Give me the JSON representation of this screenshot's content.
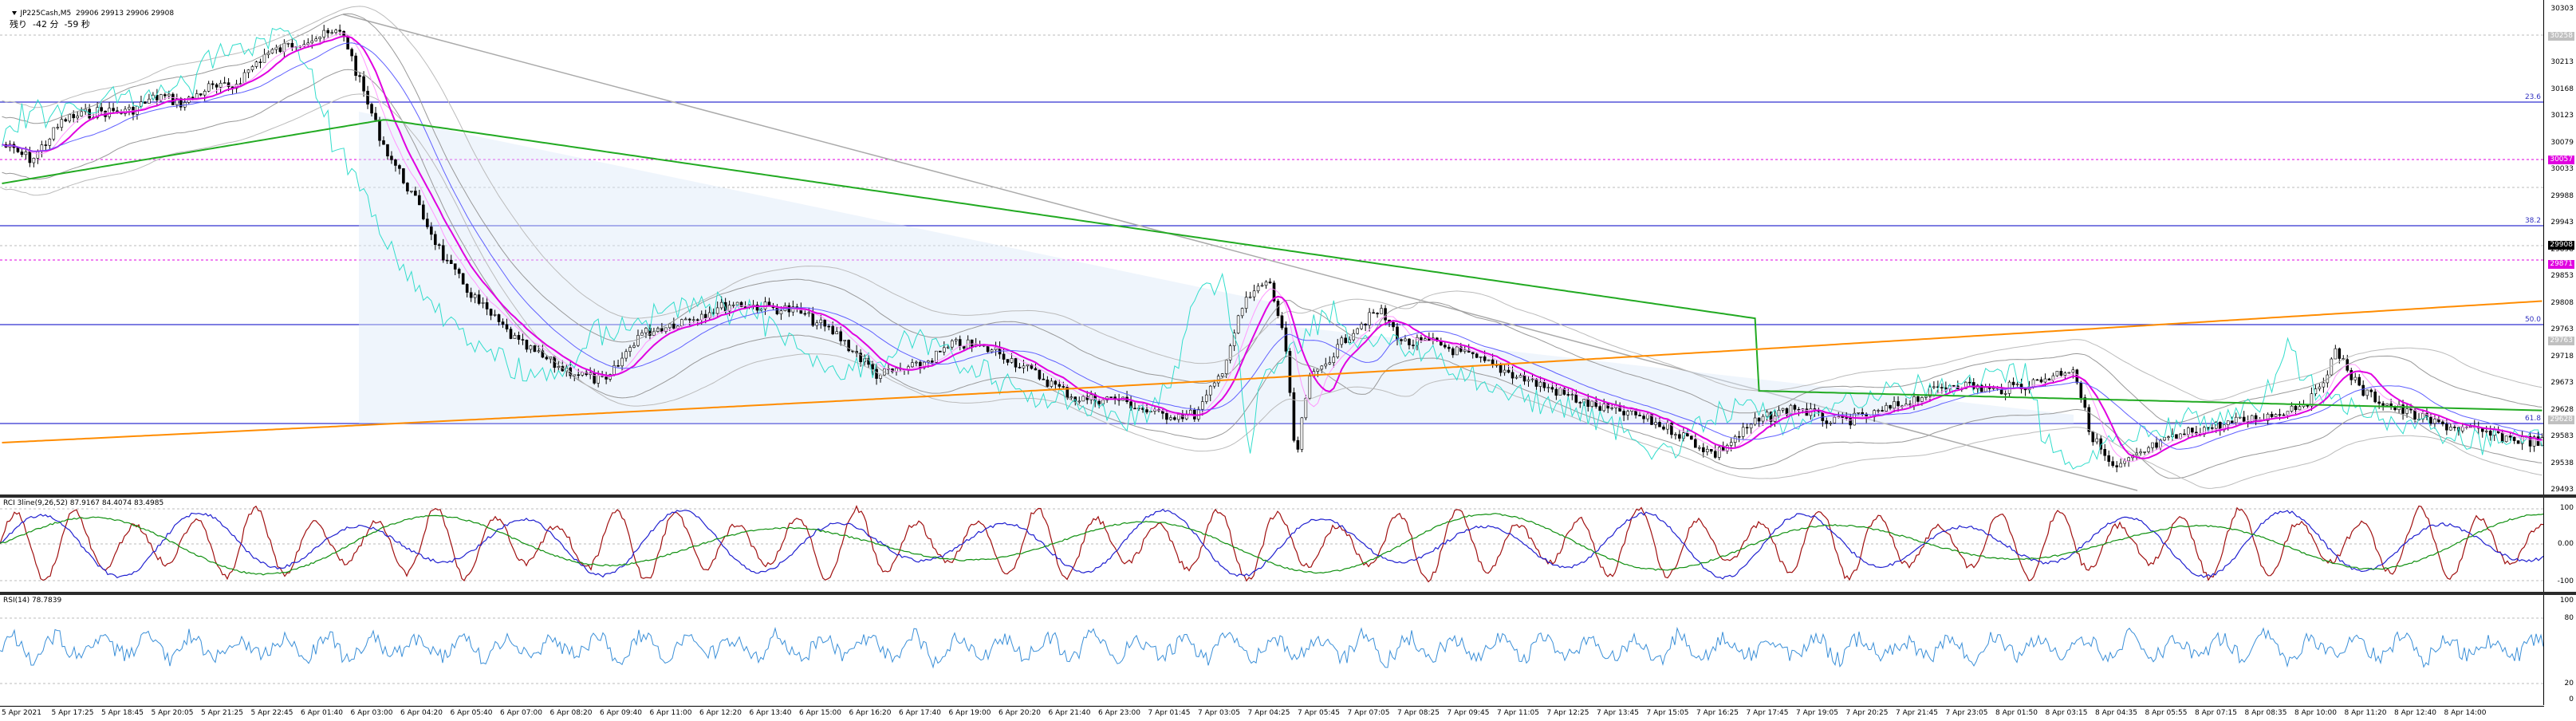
{
  "header": {
    "symbol_line": "JP225Cash,M5  29906 29913 29906 29908",
    "countdown": "残り  -42 分  -59 秒",
    "menu_icon": "dropdown-triangle-icon"
  },
  "price_scale": {
    "ticks": [
      "30303",
      "30258",
      "30213",
      "30168",
      "30123",
      "30079",
      "30033",
      "29988",
      "29943",
      "29898",
      "29853",
      "29808",
      "29763",
      "29718",
      "29673",
      "29628",
      "29583",
      "29538",
      "29493"
    ],
    "current_price": "29908",
    "magenta_tag": "29871",
    "magenta_tag2": "30057",
    "grey_tag1": "30258",
    "grey_tag2": "29763",
    "grey_tag3": "29628"
  },
  "fib_labels": {
    "f236": "23.6",
    "f382": "38.2",
    "f500": "50.0",
    "f618": "61.8"
  },
  "rci_pane": {
    "title": "RCI 3line(9,26,52) 87.9167 84.4074 83.4985",
    "ticks": [
      "100",
      "0.00",
      "-100"
    ]
  },
  "rsi_pane": {
    "title": "RSI(14) 78.7839",
    "ticks": [
      "100",
      "80",
      "20",
      "0"
    ]
  },
  "time_axis": {
    "labels": [
      "5 Apr 2021",
      "5 Apr 17:25",
      "5 Apr 18:45",
      "5 Apr 20:05",
      "5 Apr 21:25",
      "5 Apr 22:45",
      "6 Apr 01:40",
      "6 Apr 03:00",
      "6 Apr 04:20",
      "6 Apr 05:40",
      "6 Apr 07:00",
      "6 Apr 08:20",
      "6 Apr 09:40",
      "6 Apr 11:00",
      "6 Apr 12:20",
      "6 Apr 13:40",
      "6 Apr 15:00",
      "6 Apr 16:20",
      "6 Apr 17:40",
      "6 Apr 19:00",
      "6 Apr 20:20",
      "6 Apr 21:40",
      "6 Apr 23:00",
      "7 Apr 01:45",
      "7 Apr 03:05",
      "7 Apr 04:25",
      "7 Apr 05:45",
      "7 Apr 07:05",
      "7 Apr 08:25",
      "7 Apr 09:45",
      "7 Apr 11:05",
      "7 Apr 12:25",
      "7 Apr 13:45",
      "7 Apr 15:05",
      "7 Apr 16:25",
      "7 Apr 17:45",
      "7 Apr 19:05",
      "7 Apr 20:25",
      "7 Apr 21:45",
      "7 Apr 23:05",
      "8 Apr 01:50",
      "8 Apr 03:15",
      "8 Apr 04:35",
      "8 Apr 05:55",
      "8 Apr 07:15",
      "8 Apr 08:35",
      "8 Apr 10:00",
      "8 Apr 11:20",
      "8 Apr 12:40",
      "8 Apr 14:00"
    ]
  },
  "colors": {
    "fib_line": "#3030d0",
    "magenta": "#e000e0",
    "green_ma": "#22aa22",
    "orange_ma": "#ff8c00",
    "cyan": "#33ddcc",
    "rci_red": "#a01010",
    "rci_blue": "#2020d0",
    "rci_green": "#109010",
    "rsi_line": "#3a8fd8"
  }
}
